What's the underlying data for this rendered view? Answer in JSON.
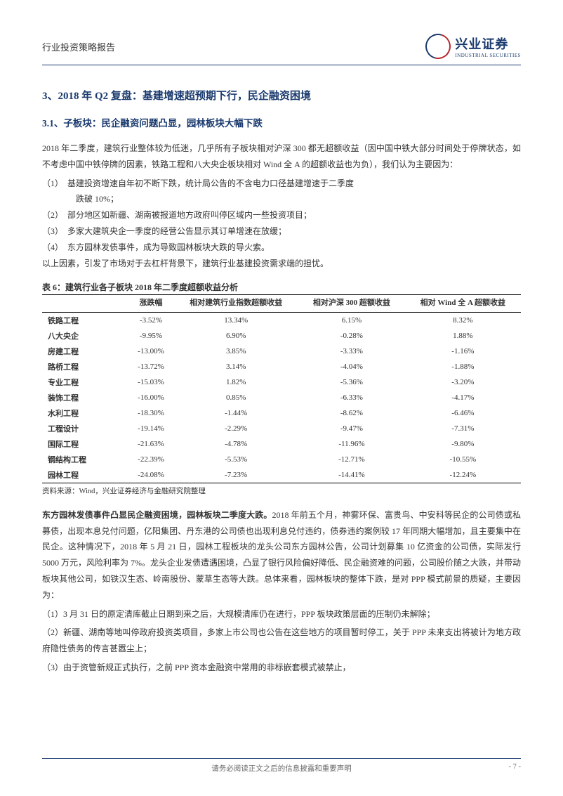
{
  "header": {
    "left": "行业投资策略报告",
    "logo_cn": "兴业证券",
    "logo_en": "INDUSTRIAL SECURITIES"
  },
  "section": {
    "title": "3、2018 年 Q2 复盘：基建增速超预期下行，民企融资困境",
    "subsection_title": "3.1、子板块：民企融资问题凸显，园林板块大幅下跌"
  },
  "para1": {
    "line1": "2018 年二季度，建筑行业整体较为低迷，几乎所有子板块相对沪深 300 都无超额收益（因中国中铁大部分时间处于停牌状态，如不考虑中国中铁停牌的因素，铁路工程和八大央企板块相对 Wind 全 A 的超额收益也为负），我们认为主要因为：",
    "item1a": "（1）　基建投资增速自年初不断下跌，统计局公告的不含电力口径基建增速于二季度",
    "item1b": "跌破 10%；",
    "item2": "（2）　部分地区如新疆、湖南被报道地方政府叫停区域内一些投资项目；",
    "item3": "（3）　多家大建筑央企一季度的经营公告显示其订单增速在放缓；",
    "item4": "（4）　东方园林发债事件，成为导致园林板块大跌的导火索。",
    "closing": "以上因素，引发了市场对于去杠杆背景下，建筑行业基建投资需求端的担忧。"
  },
  "table": {
    "title": "表 6：建筑行业各子板块 2018 年二季度超额收益分析",
    "columns": [
      "",
      "涨跌幅",
      "相对建筑行业指数超额收益",
      "相对沪深 300 超额收益",
      "相对 Wind 全 A 超额收益"
    ],
    "rows": [
      [
        "铁路工程",
        "-3.52%",
        "13.34%",
        "6.15%",
        "8.32%"
      ],
      [
        "八大央企",
        "-9.95%",
        "6.90%",
        "-0.28%",
        "1.88%"
      ],
      [
        "房建工程",
        "-13.00%",
        "3.85%",
        "-3.33%",
        "-1.16%"
      ],
      [
        "路桥工程",
        "-13.72%",
        "3.14%",
        "-4.04%",
        "-1.88%"
      ],
      [
        "专业工程",
        "-15.03%",
        "1.82%",
        "-5.36%",
        "-3.20%"
      ],
      [
        "装饰工程",
        "-16.00%",
        "0.85%",
        "-6.33%",
        "-4.17%"
      ],
      [
        "水利工程",
        "-18.30%",
        "-1.44%",
        "-8.62%",
        "-6.46%"
      ],
      [
        "工程设计",
        "-19.14%",
        "-2.29%",
        "-9.47%",
        "-7.31%"
      ],
      [
        "国际工程",
        "-21.63%",
        "-4.78%",
        "-11.96%",
        "-9.80%"
      ],
      [
        "钢结构工程",
        "-22.39%",
        "-5.53%",
        "-12.71%",
        "-10.55%"
      ],
      [
        "园林工程",
        "-24.08%",
        "-7.23%",
        "-14.41%",
        "-12.24%"
      ]
    ],
    "source": "资料来源：Wind，兴业证券经济与金融研究院整理"
  },
  "para2": {
    "bold": "东方园林发债事件凸显民企融资困境，园林板块二季度大跌。",
    "rest": "2018 年前五个月，神雾环保、富贵鸟、中安科等民企的公司债或私募债，出现本息兑付问题，亿阳集团、丹东港的公司债也出现利息兑付违约，债券违约案例较 17 年同期大幅增加，且主要集中在民企。这种情况下，2018 年 5 月 21 日，园林工程板块的龙头公司东方园林公告，公司计划募集 10 亿资金的公司债，实际发行 5000 万元，风险利率为 7%。龙头企业发债遭遇困境，凸显了银行风险偏好降低、民企融资难的问题，公司股价随之大跌，并带动板块其他公司，如铁汉生态、岭南股份、蒙草生态等大跌。总体来看，园林板块的整体下跌，是对 PPP 模式前景的质疑，主要因为：",
    "item1": "（1）3 月 31 日的原定清库截止日期到来之后，大规模清库仍在进行，PPP 板块政策层面的压制仍未解除；",
    "item2": "（2）新疆、湖南等地叫停政府投资类项目，多家上市公司也公告在这些地方的项目暂时停工，关于 PPP 未来支出将被计为地方政府隐性债务的传言甚嚣尘上；",
    "item3": "（3）由于资管新规正式执行，之前 PPP 资本金融资中常用的非标嵌套模式被禁止，"
  },
  "footer": {
    "center": "请务必阅读正文之后的信息披露和重要声明",
    "right": "- 7 -"
  },
  "colors": {
    "heading": "#1a3a6e",
    "text": "#333333",
    "footer_text": "#666666",
    "brand_red": "#b8282e"
  }
}
